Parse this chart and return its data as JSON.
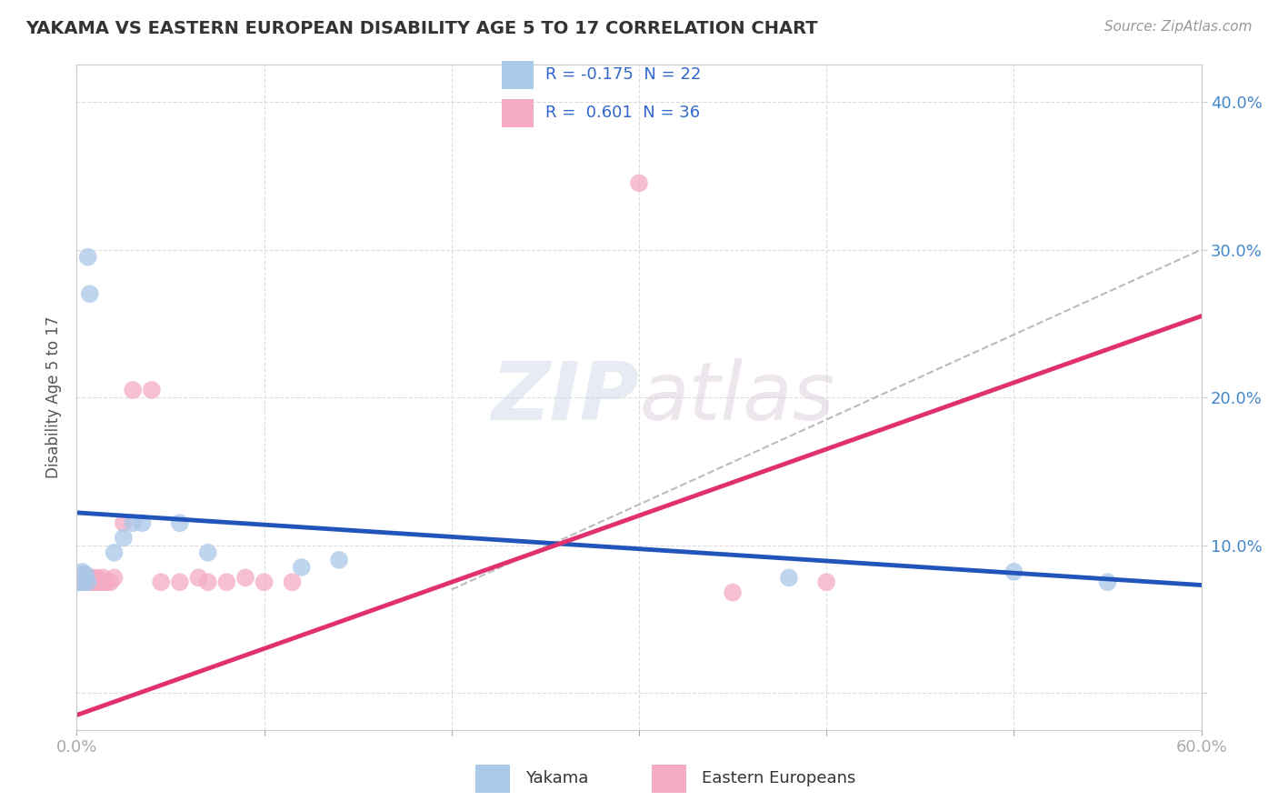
{
  "title": "YAKAMA VS EASTERN EUROPEAN DISABILITY AGE 5 TO 17 CORRELATION CHART",
  "source_text": "Source: ZipAtlas.com",
  "ylabel": "Disability Age 5 to 17",
  "xlim": [
    0.0,
    0.6
  ],
  "ylim": [
    -0.025,
    0.425
  ],
  "ytick_positions": [
    0.0,
    0.1,
    0.2,
    0.3,
    0.4
  ],
  "ytick_labels": [
    "",
    "10.0%",
    "20.0%",
    "30.0%",
    "40.0%"
  ],
  "xtick_positions": [
    0.0,
    0.1,
    0.2,
    0.3,
    0.4,
    0.5,
    0.6
  ],
  "xtick_labels": [
    "0.0%",
    "",
    "",
    "",
    "",
    "",
    "60.0%"
  ],
  "legend_r_yakama": "-0.175",
  "legend_n_yakama": "22",
  "legend_r_eastern": "0.601",
  "legend_n_eastern": "36",
  "yakama_color": "#aac8e8",
  "eastern_color": "#f5aac5",
  "yakama_line_color": "#2255bb",
  "eastern_line_color": "#e03070",
  "grid_color": "#dddddd",
  "tick_label_color": "#4488cc",
  "watermark_color": "#ccd8ec",
  "yakama_points": [
    [
      0.001,
      0.075
    ],
    [
      0.002,
      0.075
    ],
    [
      0.002,
      0.08
    ],
    [
      0.003,
      0.075
    ],
    [
      0.003,
      0.078
    ],
    [
      0.003,
      0.082
    ],
    [
      0.004,
      0.075
    ],
    [
      0.005,
      0.08
    ],
    [
      0.006,
      0.075
    ],
    [
      0.006,
      0.295
    ],
    [
      0.007,
      0.27
    ],
    [
      0.02,
      0.095
    ],
    [
      0.025,
      0.105
    ],
    [
      0.03,
      0.115
    ],
    [
      0.035,
      0.115
    ],
    [
      0.055,
      0.115
    ],
    [
      0.07,
      0.095
    ],
    [
      0.12,
      0.085
    ],
    [
      0.14,
      0.09
    ],
    [
      0.38,
      0.078
    ],
    [
      0.5,
      0.082
    ],
    [
      0.55,
      0.075
    ]
  ],
  "eastern_points": [
    [
      0.001,
      0.075
    ],
    [
      0.001,
      0.078
    ],
    [
      0.002,
      0.075
    ],
    [
      0.002,
      0.078
    ],
    [
      0.003,
      0.075
    ],
    [
      0.003,
      0.08
    ],
    [
      0.004,
      0.075
    ],
    [
      0.005,
      0.078
    ],
    [
      0.006,
      0.075
    ],
    [
      0.007,
      0.078
    ],
    [
      0.008,
      0.075
    ],
    [
      0.008,
      0.078
    ],
    [
      0.009,
      0.075
    ],
    [
      0.01,
      0.075
    ],
    [
      0.011,
      0.078
    ],
    [
      0.012,
      0.075
    ],
    [
      0.013,
      0.075
    ],
    [
      0.014,
      0.078
    ],
    [
      0.015,
      0.075
    ],
    [
      0.016,
      0.075
    ],
    [
      0.018,
      0.075
    ],
    [
      0.02,
      0.078
    ],
    [
      0.025,
      0.115
    ],
    [
      0.03,
      0.205
    ],
    [
      0.04,
      0.205
    ],
    [
      0.045,
      0.075
    ],
    [
      0.055,
      0.075
    ],
    [
      0.065,
      0.078
    ],
    [
      0.07,
      0.075
    ],
    [
      0.08,
      0.075
    ],
    [
      0.09,
      0.078
    ],
    [
      0.1,
      0.075
    ],
    [
      0.115,
      0.075
    ],
    [
      0.3,
      0.345
    ],
    [
      0.35,
      0.068
    ],
    [
      0.4,
      0.075
    ]
  ],
  "blue_line": {
    "x0": 0.0,
    "y0": 0.122,
    "x1": 0.6,
    "y1": 0.073
  },
  "pink_line": {
    "x0": 0.0,
    "y0": -0.015,
    "x1": 0.6,
    "y1": 0.255
  },
  "dash_line": {
    "x0": 0.2,
    "y0": 0.07,
    "x1": 0.6,
    "y1": 0.3
  }
}
